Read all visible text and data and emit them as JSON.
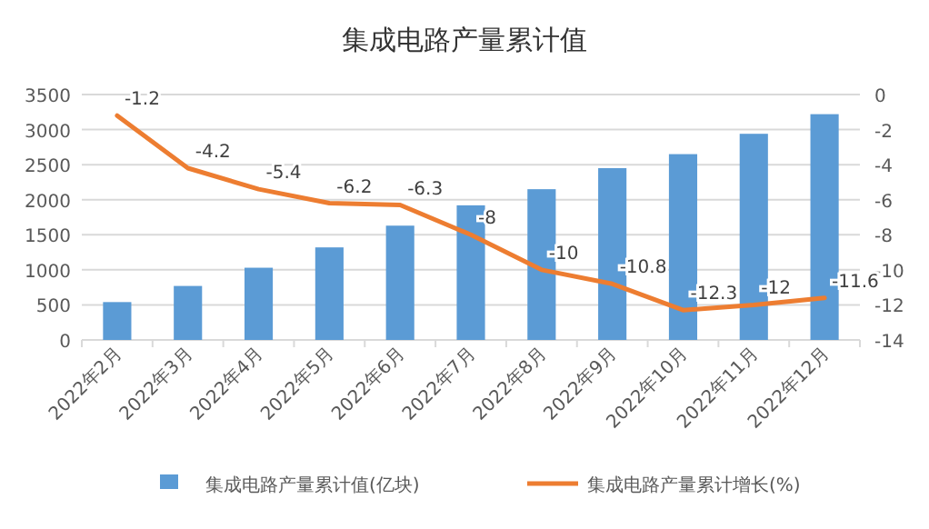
{
  "chart_data": {
    "type": "bar",
    "title": "集成电路产量累计值",
    "categories": [
      "2022年2月",
      "2022年3月",
      "2022年4月",
      "2022年5月",
      "2022年6月",
      "2022年7月",
      "2022年8月",
      "2022年9月",
      "2022年10月",
      "2022年11月",
      "2022年12月"
    ],
    "series": [
      {
        "name": "集成电路产量累计值(亿块)",
        "color": "#5b9bd5",
        "values": [
          540,
          770,
          1030,
          1320,
          1630,
          1920,
          2150,
          2450,
          2650,
          2940,
          3220
        ]
      },
      {
        "name": "集成电路产量累计增长(%)",
        "type": "line",
        "axis": "y2",
        "color": "#ed7d31",
        "values": [
          -1.2,
          -4.2,
          -5.4,
          -6.2,
          -6.3,
          -8,
          -10,
          -10.8,
          -12.3,
          -12,
          -11.6
        ],
        "value_labels": [
          "-1.2",
          "-4.2",
          "-5.4",
          "-6.2",
          "-6.3",
          "-8",
          "-10",
          "-10.8",
          "-12.3",
          "-12",
          "-11.6"
        ]
      }
    ],
    "ylim": [
      0,
      3500
    ],
    "yticks": [
      0,
      500,
      1000,
      1500,
      2000,
      2500,
      3000,
      3500
    ],
    "y2lim": [
      -14,
      0
    ],
    "y2ticks": [
      -14,
      -12,
      -10,
      -8,
      -6,
      -4,
      -2,
      0
    ],
    "grid": "y",
    "legend": "bottom"
  }
}
